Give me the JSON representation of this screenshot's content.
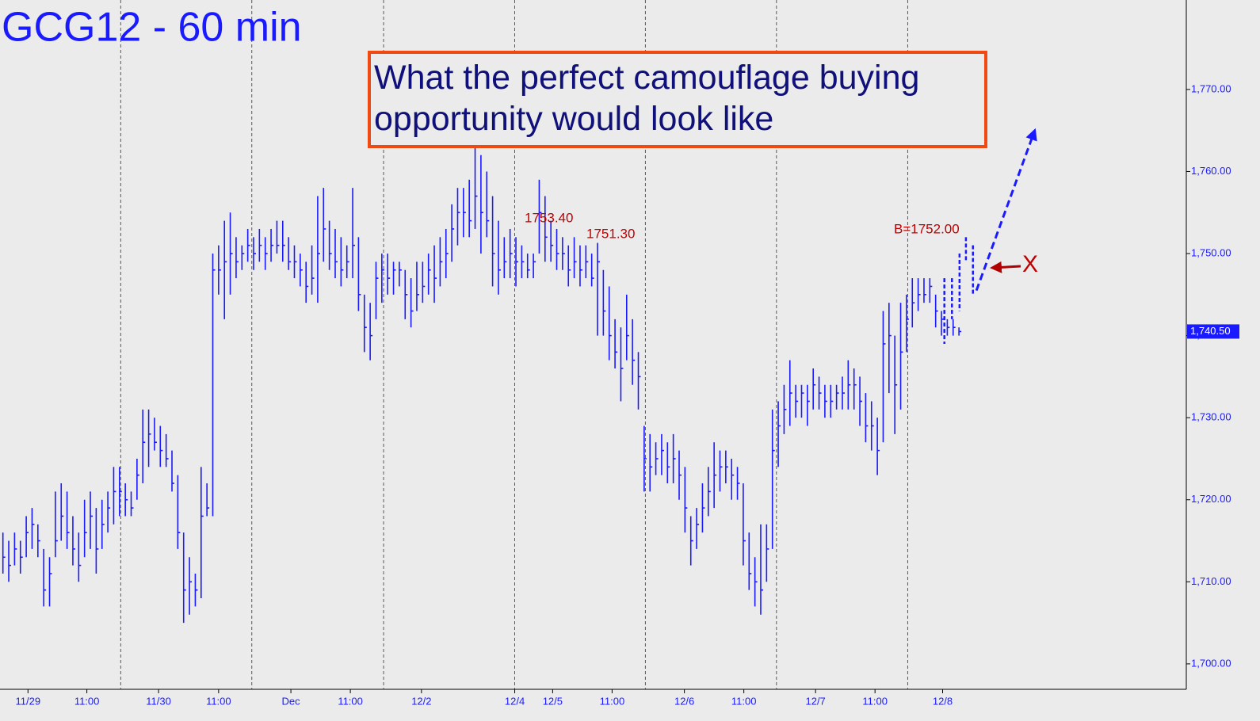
{
  "chart_data": {
    "type": "ohlc",
    "title": "GCG12 - 60 min",
    "callout": "What the perfect camouflage buying opportunity would look like",
    "color": "#1a1aff",
    "ylim": [
      1696.9,
      1780.9
    ],
    "yticks": [
      {
        "value": 1700,
        "label": "1,700.00"
      },
      {
        "value": 1710,
        "label": "1,710.00"
      },
      {
        "value": 1720,
        "label": "1,720.00"
      },
      {
        "value": 1730,
        "label": "1,730.00"
      },
      {
        "value": 1740,
        "label": "1,740.00"
      },
      {
        "value": 1750,
        "label": "1,750.00"
      },
      {
        "value": 1760,
        "label": "1,760.00"
      },
      {
        "value": 1770,
        "label": "1,770.00"
      }
    ],
    "xlim": [
      -0.5,
      203
    ],
    "xticks": [
      {
        "value": 4.3,
        "label": "11/29"
      },
      {
        "value": 14.4,
        "label": "11:00"
      },
      {
        "value": 26.7,
        "label": "11/30"
      },
      {
        "value": 37,
        "label": "11:00"
      },
      {
        "value": 49.4,
        "label": "Dec"
      },
      {
        "value": 59.6,
        "label": "11:00"
      },
      {
        "value": 71.8,
        "label": "12/2"
      },
      {
        "value": 87.8,
        "label": "12/4"
      },
      {
        "value": 94.3,
        "label": "12/5"
      },
      {
        "value": 104.5,
        "label": "11:00"
      },
      {
        "value": 116.9,
        "label": "12/6"
      },
      {
        "value": 127.1,
        "label": "11:00"
      },
      {
        "value": 139.4,
        "label": "12/7"
      },
      {
        "value": 149.6,
        "label": "11:00"
      },
      {
        "value": 161.2,
        "label": "12/8"
      }
    ],
    "session_lines": [
      20.2,
      42.7,
      65.3,
      87.8,
      110.2,
      132.7,
      155.2
    ],
    "last_price": {
      "value": 1740.5,
      "label": "1,740.50"
    },
    "bars": [
      [
        1716,
        1711,
        1713
      ],
      [
        1715,
        1710,
        1712
      ],
      [
        1716,
        1712,
        1714
      ],
      [
        1715,
        1711,
        1713
      ],
      [
        1718,
        1713,
        1716
      ],
      [
        1719,
        1714,
        1717
      ],
      [
        1717,
        1713,
        1715
      ],
      [
        1714,
        1707,
        1709
      ],
      [
        1713,
        1707,
        1711
      ],
      [
        1721,
        1713,
        1715
      ],
      [
        1722,
        1715,
        1718
      ],
      [
        1721,
        1714,
        1716
      ],
      [
        1718,
        1712,
        1714
      ],
      [
        1716,
        1710,
        1712
      ],
      [
        1720,
        1713,
        1716
      ],
      [
        1721,
        1714,
        1718
      ],
      [
        1719,
        1711,
        1714
      ],
      [
        1720,
        1714,
        1717
      ],
      [
        1721,
        1716,
        1719
      ],
      [
        1724,
        1717,
        1721
      ],
      [
        1724,
        1718,
        1721
      ],
      [
        1722,
        1718,
        1720
      ],
      [
        1721,
        1718,
        1719
      ],
      [
        1725,
        1720,
        1723
      ],
      [
        1731,
        1722,
        1727
      ],
      [
        1731,
        1724,
        1728
      ],
      [
        1730,
        1726,
        1727
      ],
      [
        1729,
        1724,
        1726
      ],
      [
        1728,
        1724,
        1725
      ],
      [
        1726,
        1721,
        1722
      ],
      [
        1723,
        1714,
        1716
      ],
      [
        1716,
        1705,
        1709
      ],
      [
        1713,
        1706,
        1710
      ],
      [
        1711,
        1707,
        1709
      ],
      [
        1724,
        1708,
        1718
      ],
      [
        1722,
        1718,
        1719
      ],
      [
        1750,
        1718,
        1748
      ],
      [
        1751,
        1745,
        1748
      ],
      [
        1754,
        1742,
        1749
      ],
      [
        1755,
        1745,
        1750
      ],
      [
        1752,
        1747,
        1749
      ],
      [
        1751,
        1748,
        1750
      ],
      [
        1753,
        1749,
        1751
      ],
      [
        1752,
        1748,
        1750
      ],
      [
        1753,
        1749,
        1751
      ],
      [
        1752,
        1748,
        1750
      ],
      [
        1753,
        1749,
        1751
      ],
      [
        1754,
        1750,
        1751
      ],
      [
        1754,
        1749,
        1751
      ],
      [
        1752,
        1748,
        1749
      ],
      [
        1751,
        1747,
        1749
      ],
      [
        1750,
        1746,
        1748
      ],
      [
        1749,
        1744,
        1746
      ],
      [
        1751,
        1745,
        1747
      ],
      [
        1757,
        1744,
        1750
      ],
      [
        1758,
        1749,
        1753
      ],
      [
        1754,
        1748,
        1750
      ],
      [
        1753,
        1747,
        1749
      ],
      [
        1752,
        1746,
        1748
      ],
      [
        1751,
        1747,
        1749
      ],
      [
        1758,
        1747,
        1751
      ],
      [
        1752,
        1743,
        1745
      ],
      [
        1745,
        1738,
        1741
      ],
      [
        1744,
        1737,
        1740
      ],
      [
        1749,
        1742,
        1747
      ],
      [
        1750,
        1744,
        1748
      ],
      [
        1750,
        1745,
        1747
      ],
      [
        1749,
        1745,
        1748
      ],
      [
        1749,
        1746,
        1748
      ],
      [
        1748,
        1742,
        1745
      ],
      [
        1747,
        1741,
        1743
      ],
      [
        1749,
        1743,
        1745
      ],
      [
        1749,
        1744,
        1746
      ],
      [
        1750,
        1745,
        1748
      ],
      [
        1751,
        1744,
        1747
      ],
      [
        1752,
        1746,
        1749
      ],
      [
        1753,
        1747,
        1750
      ],
      [
        1756,
        1749,
        1753
      ],
      [
        1758,
        1751,
        1755
      ],
      [
        1758,
        1752,
        1755
      ],
      [
        1759,
        1752,
        1754
      ],
      [
        1765,
        1753,
        1757
      ],
      [
        1762,
        1750,
        1755
      ],
      [
        1760,
        1752,
        1754
      ],
      [
        1757,
        1746,
        1750
      ],
      [
        1754,
        1745,
        1748
      ],
      [
        1752,
        1747,
        1749
      ],
      [
        1753,
        1747,
        1750
      ],
      [
        1752,
        1746,
        1749
      ],
      [
        1751,
        1747,
        1749
      ],
      [
        1750,
        1747,
        1748
      ],
      [
        1750,
        1747,
        1749
      ],
      [
        1759,
        1750,
        1755
      ],
      [
        1757,
        1749,
        1752
      ],
      [
        1754,
        1749,
        1751
      ],
      [
        1753,
        1748,
        1750
      ],
      [
        1752,
        1748,
        1750
      ],
      [
        1751,
        1746,
        1748
      ],
      [
        1752,
        1747,
        1749
      ],
      [
        1751,
        1746,
        1748
      ],
      [
        1751,
        1747,
        1749
      ],
      [
        1750,
        1746,
        1747
      ],
      [
        1751.3,
        1740,
        1749
      ],
      [
        1748,
        1740,
        1743
      ],
      [
        1746,
        1737,
        1740
      ],
      [
        1742,
        1736,
        1738
      ],
      [
        1741,
        1732,
        1736
      ],
      [
        1745,
        1737,
        1740
      ],
      [
        1742,
        1734,
        1737
      ],
      [
        1738,
        1731,
        1735
      ],
      [
        1729,
        1721,
        1725
      ],
      [
        1728,
        1721,
        1724
      ],
      [
        1727,
        1723,
        1725
      ],
      [
        1728,
        1723,
        1726
      ],
      [
        1727,
        1722,
        1724
      ],
      [
        1728,
        1722,
        1725
      ],
      [
        1726,
        1720,
        1723
      ],
      [
        1724,
        1716,
        1719
      ],
      [
        1718,
        1712,
        1715
      ],
      [
        1719,
        1714,
        1717
      ],
      [
        1722,
        1716,
        1719
      ],
      [
        1724,
        1718,
        1721
      ],
      [
        1727,
        1719,
        1723
      ],
      [
        1726,
        1721,
        1724
      ],
      [
        1726,
        1722,
        1724
      ],
      [
        1725,
        1720,
        1723
      ],
      [
        1724,
        1720,
        1722
      ],
      [
        1722,
        1712,
        1715
      ],
      [
        1716,
        1709,
        1711
      ],
      [
        1713,
        1707,
        1710
      ],
      [
        1717,
        1706,
        1709
      ],
      [
        1717,
        1710,
        1714
      ],
      [
        1731,
        1714,
        1726
      ],
      [
        1732,
        1724,
        1729
      ],
      [
        1734,
        1728,
        1731
      ],
      [
        1737,
        1729,
        1733
      ],
      [
        1734,
        1730,
        1732
      ],
      [
        1734,
        1730,
        1733
      ],
      [
        1734,
        1729,
        1732
      ],
      [
        1736,
        1731,
        1734
      ],
      [
        1735,
        1731,
        1733
      ],
      [
        1734,
        1730,
        1732
      ],
      [
        1734,
        1730,
        1732
      ],
      [
        1734,
        1731,
        1733
      ],
      [
        1735,
        1731,
        1733
      ],
      [
        1737,
        1731,
        1734
      ],
      [
        1736,
        1731,
        1734
      ],
      [
        1735,
        1729,
        1732
      ],
      [
        1733,
        1727,
        1729
      ],
      [
        1732,
        1726,
        1729
      ],
      [
        1730,
        1723,
        1726
      ],
      [
        1743,
        1727,
        1739
      ],
      [
        1744,
        1733,
        1740
      ],
      [
        1740,
        1728,
        1734
      ],
      [
        1744,
        1731,
        1738
      ],
      [
        1745,
        1738,
        1742
      ],
      [
        1747,
        1741,
        1744
      ],
      [
        1747,
        1743,
        1745
      ],
      [
        1747,
        1744,
        1745
      ],
      [
        1747,
        1744,
        1746
      ],
      [
        1745,
        1741,
        1743
      ],
      [
        1743,
        1740,
        1742
      ],
      [
        1742,
        1740,
        1741
      ],
      [
        1742,
        1740,
        1741
      ],
      [
        1741,
        1740,
        1740.5
      ]
    ],
    "projection": {
      "x": [
        161.5,
        162.8,
        164.1,
        165.2,
        166.4
      ],
      "bars": [
        [
          1747,
          1739
        ],
        [
          1747,
          1742
        ],
        [
          1750,
          1743
        ],
        [
          1752,
          1749
        ],
        [
          1751,
          1745
        ]
      ],
      "arrow": {
        "x": [
          167,
          177
        ],
        "y": [
          1745.5,
          1765
        ]
      }
    },
    "annotations": [
      "1753.40",
      "1751.30",
      "B=1752.00",
      "X"
    ]
  }
}
